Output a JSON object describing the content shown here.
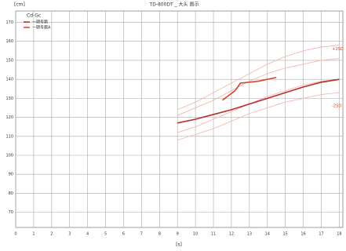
{
  "chart_data": {
    "type": "line",
    "title": "TD-800DT _ 大头 图示",
    "y_label": "[cm]",
    "x_label": "[s]",
    "legend_title": "Cd-Gc",
    "xlim": [
      0,
      18.2
    ],
    "xticks": [
      0,
      1,
      2,
      3,
      4,
      5,
      6,
      7,
      8,
      9,
      10,
      11,
      12,
      13,
      14,
      15,
      16,
      17,
      18
    ],
    "ylim": [
      62,
      176
    ],
    "yticks": [
      70,
      80,
      90,
      100,
      110,
      120,
      130,
      140,
      150,
      160,
      170
    ],
    "grid": true,
    "annotations": [
      {
        "text": "+2SD",
        "x": 17.6,
        "y": 156
      },
      {
        "text": "-2SD",
        "x": 17.6,
        "y": 126
      }
    ],
    "series": [
      {
        "color": "#f3b9b0",
        "x": [
          9,
          10,
          11,
          12,
          13,
          14,
          15,
          16,
          17,
          18
        ],
        "values": [
          124,
          128,
          133,
          138,
          143,
          148,
          152,
          155,
          157,
          158
        ]
      },
      {
        "color": "#f3b9b0",
        "x": [
          9,
          10,
          11,
          12,
          13,
          14,
          15,
          16,
          17,
          18
        ],
        "values": [
          121,
          125,
          129,
          134,
          139,
          143,
          146,
          148,
          150,
          151
        ]
      },
      {
        "color": "#f3b9b0",
        "x": [
          9,
          10,
          11,
          12,
          13,
          14,
          15,
          16,
          17,
          18
        ],
        "values": [
          112,
          115,
          119,
          123,
          127,
          131,
          134,
          137,
          139,
          140
        ]
      },
      {
        "color": "#f3b9b0",
        "x": [
          9,
          10,
          11,
          12,
          13,
          14,
          15,
          16,
          17,
          18
        ],
        "values": [
          108,
          111,
          114,
          118,
          122,
          125,
          128,
          130,
          132,
          133
        ]
      },
      {
        "name": "一期号籍",
        "color": "#b5302a",
        "x": [
          9,
          10,
          11,
          12,
          13,
          14,
          15,
          16,
          17,
          18
        ],
        "values": [
          117,
          119,
          121.5,
          124,
          127,
          130,
          133,
          136,
          138.5,
          140
        ]
      },
      {
        "name": "一期号籍A",
        "color": "#d9442b",
        "x": [
          11.5,
          12.2,
          12.5,
          13.5,
          14.5
        ],
        "values": [
          129,
          134,
          138,
          139,
          141
        ]
      }
    ]
  }
}
